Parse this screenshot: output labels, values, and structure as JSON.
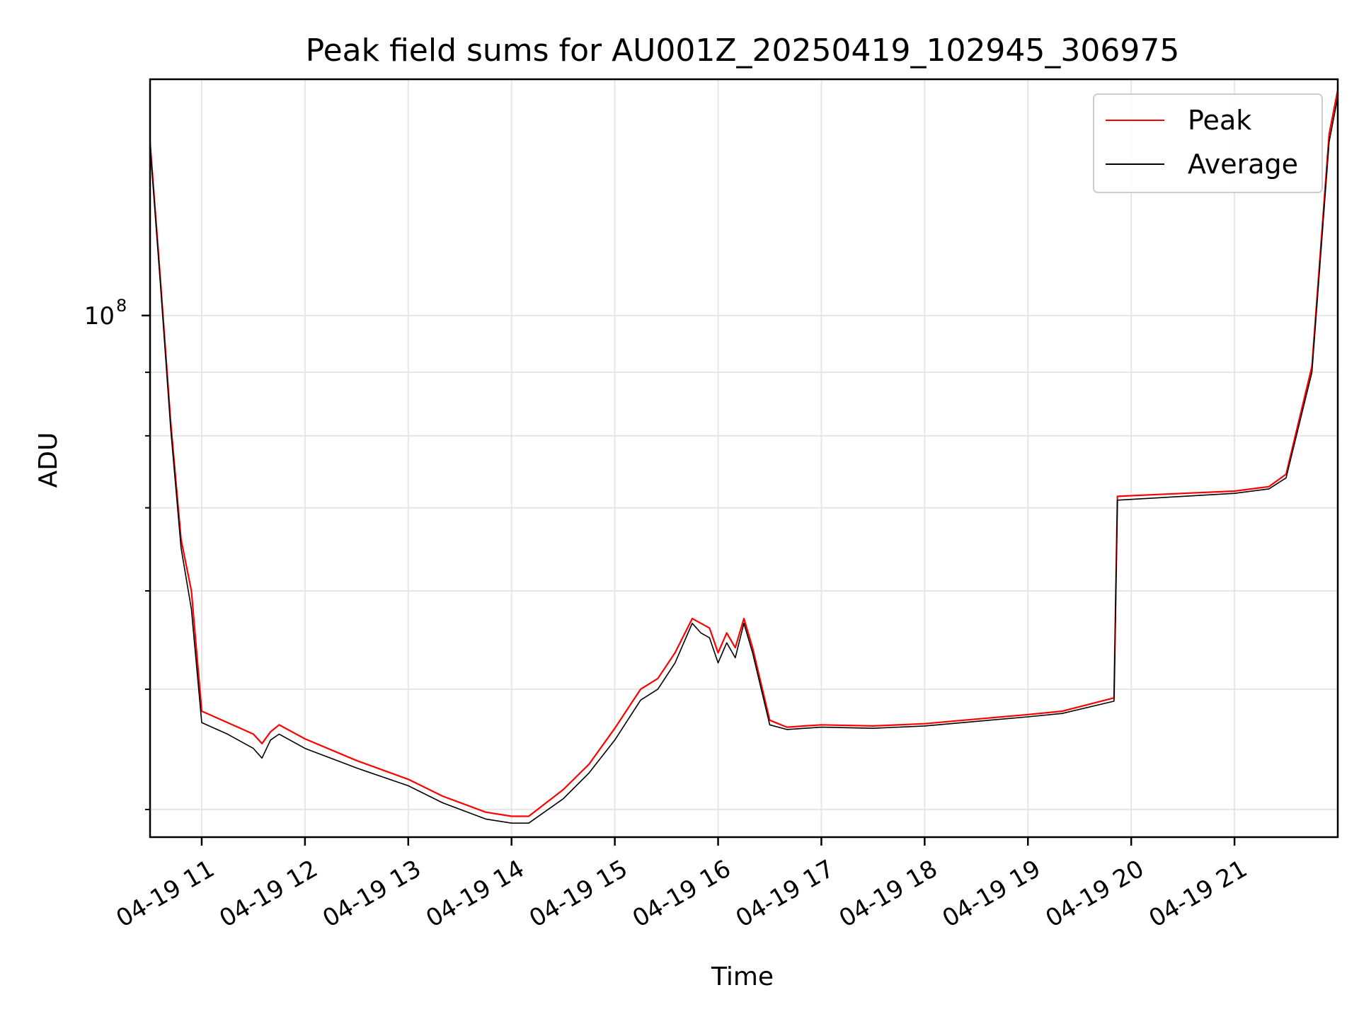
{
  "chart_data": {
    "type": "line",
    "title": "Peak field sums for AU001Z_20250419_102945_306975",
    "xlabel": "Time",
    "ylabel": "ADU",
    "y_scale": "log",
    "grid": true,
    "legend_position": "top-right",
    "xlim": [
      "04-19 10:30",
      "04-19 22:00"
    ],
    "ylim": [
      38000000,
      155000000
    ],
    "x_ticks": [
      "04-19 11",
      "04-19 12",
      "04-19 13",
      "04-19 14",
      "04-19 15",
      "04-19 16",
      "04-19 17",
      "04-19 18",
      "04-19 19",
      "04-19 20",
      "04-19 21"
    ],
    "y_major_tick": {
      "base": "10",
      "exponent": "8",
      "value": 100000000
    },
    "series": [
      {
        "name": "Peak",
        "color": "#ff0000",
        "x": [
          "04-19 10:30",
          "04-19 10:36",
          "04-19 10:42",
          "04-19 10:48",
          "04-19 10:54",
          "04-19 11:00",
          "04-19 11:15",
          "04-19 11:30",
          "04-19 11:35",
          "04-19 11:40",
          "04-19 11:45",
          "04-19 12:00",
          "04-19 12:30",
          "04-19 13:00",
          "04-19 13:20",
          "04-19 13:45",
          "04-19 14:00",
          "04-19 14:10",
          "04-19 14:30",
          "04-19 14:45",
          "04-19 15:00",
          "04-19 15:15",
          "04-19 15:25",
          "04-19 15:35",
          "04-19 15:45",
          "04-19 15:50",
          "04-19 15:55",
          "04-19 16:00",
          "04-19 16:05",
          "04-19 16:10",
          "04-19 16:15",
          "04-19 16:20",
          "04-19 16:30",
          "04-19 16:40",
          "04-19 17:00",
          "04-19 17:30",
          "04-19 18:00",
          "04-19 18:30",
          "04-19 19:00",
          "04-19 19:20",
          "04-19 19:50",
          "04-19 19:52",
          "04-19 20:30",
          "04-19 21:00",
          "04-19 21:20",
          "04-19 21:30",
          "04-19 21:45",
          "04-19 21:55",
          "04-19 22:00"
        ],
        "y": [
          138000000,
          107000000,
          82000000,
          66000000,
          60000000,
          48000000,
          47000000,
          46000000,
          45200000,
          46200000,
          46800000,
          45600000,
          43800000,
          42300000,
          41000000,
          39800000,
          39500000,
          39500000,
          41500000,
          43500000,
          46500000,
          50000000,
          51000000,
          53500000,
          57000000,
          56500000,
          56000000,
          53500000,
          55500000,
          54000000,
          57000000,
          54000000,
          47200000,
          46600000,
          46800000,
          46700000,
          46900000,
          47300000,
          47700000,
          48000000,
          49200000,
          71500000,
          71900000,
          72200000,
          72800000,
          74500000,
          91000000,
          140000000,
          152000000
        ]
      },
      {
        "name": "Average",
        "color": "#000000",
        "x": [
          "04-19 10:30",
          "04-19 10:36",
          "04-19 10:42",
          "04-19 10:48",
          "04-19 10:54",
          "04-19 11:00",
          "04-19 11:15",
          "04-19 11:30",
          "04-19 11:35",
          "04-19 11:40",
          "04-19 11:45",
          "04-19 12:00",
          "04-19 12:30",
          "04-19 13:00",
          "04-19 13:20",
          "04-19 13:45",
          "04-19 14:00",
          "04-19 14:10",
          "04-19 14:30",
          "04-19 14:45",
          "04-19 15:00",
          "04-19 15:15",
          "04-19 15:25",
          "04-19 15:35",
          "04-19 15:45",
          "04-19 15:50",
          "04-19 15:55",
          "04-19 16:00",
          "04-19 16:05",
          "04-19 16:10",
          "04-19 16:15",
          "04-19 16:20",
          "04-19 16:30",
          "04-19 16:40",
          "04-19 17:00",
          "04-19 17:30",
          "04-19 18:00",
          "04-19 18:30",
          "04-19 19:00",
          "04-19 19:20",
          "04-19 19:50",
          "04-19 19:52",
          "04-19 20:30",
          "04-19 21:00",
          "04-19 21:20",
          "04-19 21:30",
          "04-19 21:45",
          "04-19 21:55",
          "04-19 22:00"
        ],
        "y": [
          137000000,
          106000000,
          81000000,
          65000000,
          58000000,
          47000000,
          46000000,
          44800000,
          44000000,
          45500000,
          46000000,
          44800000,
          43200000,
          41800000,
          40500000,
          39300000,
          39000000,
          39000000,
          40800000,
          42800000,
          45500000,
          49000000,
          50000000,
          52500000,
          56500000,
          55500000,
          55000000,
          52500000,
          54500000,
          53000000,
          56500000,
          53500000,
          46800000,
          46400000,
          46600000,
          46500000,
          46700000,
          47100000,
          47500000,
          47800000,
          48900000,
          71000000,
          71500000,
          71900000,
          72500000,
          74000000,
          90000000,
          138000000,
          150000000
        ]
      }
    ]
  }
}
